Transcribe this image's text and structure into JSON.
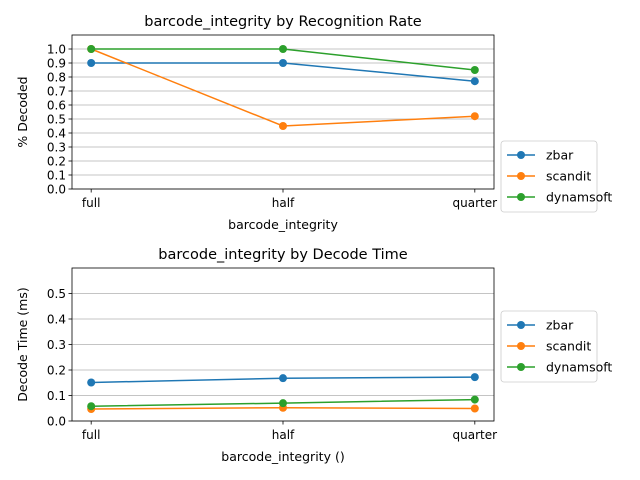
{
  "chart_data": [
    {
      "type": "line",
      "title": "barcode_integrity by Recognition Rate",
      "xlabel": "barcode_integrity",
      "ylabel": "% Decoded",
      "categories": [
        "full",
        "half",
        "quarter"
      ],
      "ylim": [
        0,
        1.1
      ],
      "yticks": [
        0.0,
        0.1,
        0.2,
        0.3,
        0.4,
        0.5,
        0.6,
        0.7,
        0.8,
        0.9,
        1.0
      ],
      "ytick_labels": [
        "0.0",
        "0.1",
        "0.2",
        "0.3",
        "0.4",
        "0.5",
        "0.6",
        "0.7",
        "0.8",
        "0.9",
        "1.0"
      ],
      "grid": "horizontal",
      "legend_position": "outside-right",
      "series": [
        {
          "name": "zbar",
          "color": "#1f77b4",
          "values": [
            0.9,
            0.9,
            0.77
          ]
        },
        {
          "name": "scandit",
          "color": "#ff7f0e",
          "values": [
            1.0,
            0.45,
            0.52
          ]
        },
        {
          "name": "dynamsoft",
          "color": "#2ca02c",
          "values": [
            1.0,
            1.0,
            0.85
          ]
        }
      ]
    },
    {
      "type": "line",
      "title": "barcode_integrity by Decode Time",
      "xlabel": "barcode_integrity ()",
      "ylabel": "Decode Time (ms)",
      "categories": [
        "full",
        "half",
        "quarter"
      ],
      "ylim": [
        0,
        0.6
      ],
      "yticks": [
        0.0,
        0.1,
        0.2,
        0.3,
        0.4,
        0.5
      ],
      "ytick_labels": [
        "0.0",
        "0.1",
        "0.2",
        "0.3",
        "0.4",
        "0.5"
      ],
      "grid": "horizontal",
      "legend_position": "outside-right",
      "series": [
        {
          "name": "zbar",
          "color": "#1f77b4",
          "values": [
            0.151,
            0.168,
            0.172
          ]
        },
        {
          "name": "scandit",
          "color": "#ff7f0e",
          "values": [
            0.047,
            0.052,
            0.049
          ]
        },
        {
          "name": "dynamsoft",
          "color": "#2ca02c",
          "values": [
            0.058,
            0.07,
            0.084
          ]
        }
      ]
    }
  ]
}
